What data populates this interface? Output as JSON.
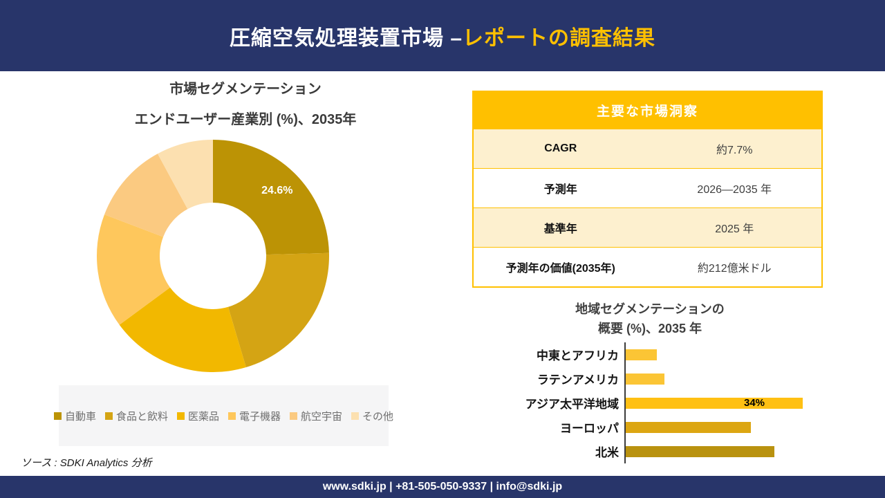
{
  "header": {
    "title_white": "圧縮空気処理装置市場 –",
    "title_gold": "レポートの調査結果"
  },
  "colors": {
    "navy": "#28356A",
    "gold": "#FFC000",
    "cream_row": "#FDF0CF",
    "donut_palette": [
      "#BC9305",
      "#D4A414",
      "#F2B800",
      "#FEC75C",
      "#FBCA81",
      "#FCE0B0"
    ],
    "bar_palette": [
      "#FBC535",
      "#FBC535",
      "#FFC013",
      "#DCA612",
      "#B9920F"
    ]
  },
  "chart_data": [
    {
      "type": "pie",
      "donut": true,
      "title": "市場セグメンテーション",
      "subtitle": "エンドユーザー産業別 (%)、2035年",
      "categories": [
        "自動車",
        "食品と飲料",
        "医薬品",
        "電子機器",
        "航空宇宙",
        "その他"
      ],
      "values": [
        24.6,
        20.8,
        19.5,
        15.9,
        11.3,
        7.9
      ],
      "data_labels": [
        "24.6%",
        "",
        "",
        "",
        "",
        ""
      ],
      "legend_position": "bottom",
      "start_angle_deg": 0
    },
    {
      "type": "bar",
      "orientation": "horizontal",
      "title_line1": "地域セグメンテーションの",
      "title_line2": "概要 (%)、2035 年",
      "categories": [
        "中東とアフリカ",
        "ラテンアメリカ",
        "アジア太平洋地域",
        "ヨーロッパ",
        "北米"
      ],
      "values": [
        6,
        7.5,
        34,
        24,
        28.5
      ],
      "data_labels": [
        "",
        "",
        "34%",
        "",
        ""
      ],
      "xlim": [
        0,
        44
      ],
      "grid": false
    }
  ],
  "insights_table": {
    "header": "主要な市場洞察",
    "rows": [
      {
        "label": "CAGR",
        "value": "約7.7%"
      },
      {
        "label": "予測年",
        "value": "2026—2035 年"
      },
      {
        "label": "基準年",
        "value": "2025 年"
      },
      {
        "label": "予測年の価値(2035年)",
        "value": "約212億米ドル"
      }
    ]
  },
  "source_note": "ソース : SDKI Analytics 分析",
  "footer": {
    "contact": "www.sdki.jp | +81-505-050-9337 | info@sdki.jp"
  }
}
